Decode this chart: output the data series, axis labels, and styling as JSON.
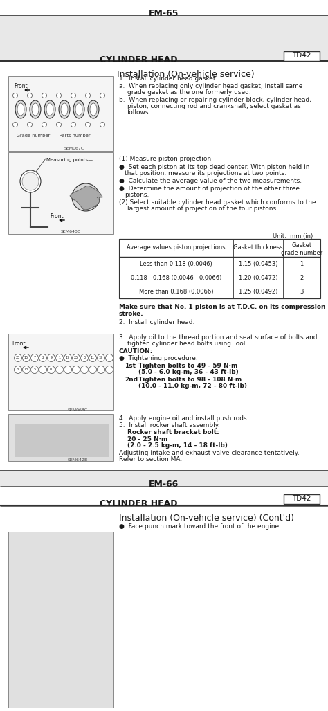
{
  "page_header": "EM-65",
  "section_title": "CYLINDER HEAD",
  "section_tag": "TD42",
  "section_title2": "CYLINDER HEAD",
  "section_tag2": "TD42",
  "subsection_title": "Installation (On-vehicle service)",
  "subsection_title2": "Installation (On-vehicle service) (Cont'd)",
  "bg_color": "#ffffff",
  "page_footer": "EM-66",
  "img1_label": "SEM067C",
  "img2_label": "SEM640B",
  "img3_label": "SEM068C",
  "img4_label": "SEM642B",
  "table_unit": "Unit:  mm (in)",
  "table_headers": [
    "Average values piston projections",
    "Gasket thickness",
    "Gasket\ngrade number"
  ],
  "table_rows": [
    [
      "Less than 0.118 (0.0046)",
      "1.15 (0.0453)",
      "1"
    ],
    [
      "0.118 - 0.168 (0.0046 - 0.0066)",
      "1.20 (0.0472)",
      "2"
    ],
    [
      "More than 0.168 (0.0066)",
      "1.25 (0.0492)",
      "3"
    ]
  ],
  "bold_note": "Make sure that No. 1 piston is at T.D.C. on its compression\nstroke.",
  "bottom_bullet": "●  Face punch mark toward the front of the engine."
}
